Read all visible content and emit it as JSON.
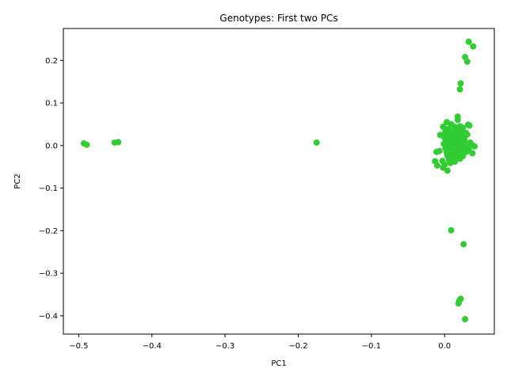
{
  "chart_data": {
    "type": "scatter",
    "title": "Genotypes: First two PCs",
    "xlabel": "PC1",
    "ylabel": "PC2",
    "xlim": [
      -0.521,
      0.068
    ],
    "ylim": [
      -0.443,
      0.275
    ],
    "xticks": [
      -0.5,
      -0.4,
      -0.3,
      -0.2,
      -0.1,
      0.0
    ],
    "xtick_labels": [
      "−0.5",
      "−0.4",
      "−0.3",
      "−0.2",
      "−0.1",
      "0.0"
    ],
    "yticks": [
      -0.4,
      -0.3,
      -0.2,
      -0.1,
      0.0,
      0.1,
      0.2
    ],
    "ytick_labels": [
      "−0.4",
      "−0.3",
      "−0.2",
      "−0.1",
      "0.0",
      "0.1",
      "0.2"
    ],
    "grid": false,
    "legend": "none",
    "marker_color": "#32cd32",
    "points": [
      [
        -0.493,
        0.005
      ],
      [
        -0.489,
        0.002
      ],
      [
        -0.451,
        0.007
      ],
      [
        -0.446,
        0.008
      ],
      [
        -0.175,
        0.007
      ],
      [
        0.033,
        0.244
      ],
      [
        0.039,
        0.233
      ],
      [
        0.028,
        0.208
      ],
      [
        0.031,
        0.197
      ],
      [
        0.022,
        0.146
      ],
      [
        0.021,
        0.132
      ],
      [
        0.009,
        -0.199
      ],
      [
        0.026,
        -0.232
      ],
      [
        0.022,
        -0.36
      ],
      [
        0.02,
        -0.365
      ],
      [
        0.019,
        -0.371
      ],
      [
        0.028,
        -0.408
      ],
      [
        0.018,
        0.068
      ],
      [
        0.018,
        0.06
      ],
      [
        0.003,
        0.055
      ],
      [
        0.032,
        0.049
      ],
      [
        0.034,
        0.047
      ],
      [
        0.009,
        0.05
      ],
      [
        -0.002,
        0.044
      ],
      [
        0.014,
        0.044
      ],
      [
        0.021,
        0.045
      ],
      [
        0.025,
        0.042
      ],
      [
        0.005,
        0.039
      ],
      [
        0.013,
        0.036
      ],
      [
        0.019,
        0.034
      ],
      [
        0.029,
        0.03
      ],
      [
        -0.006,
        0.025
      ],
      [
        0.002,
        0.026
      ],
      [
        0.01,
        0.028
      ],
      [
        0.016,
        0.024
      ],
      [
        0.024,
        0.027
      ],
      [
        0.031,
        0.026
      ],
      [
        0.0,
        0.018
      ],
      [
        0.007,
        0.019
      ],
      [
        0.012,
        0.015
      ],
      [
        0.02,
        0.018
      ],
      [
        0.027,
        0.015
      ],
      [
        0.003,
        0.01
      ],
      [
        0.009,
        0.011
      ],
      [
        0.015,
        0.008
      ],
      [
        0.022,
        0.01
      ],
      [
        0.028,
        0.006
      ],
      [
        0.035,
        0.007
      ],
      [
        0.041,
        -0.002
      ],
      [
        0.037,
        0.002
      ],
      [
        -0.001,
        0.004
      ],
      [
        0.006,
        0.002
      ],
      [
        0.011,
        0.0
      ],
      [
        0.017,
        0.003
      ],
      [
        0.024,
        -0.001
      ],
      [
        0.03,
        -0.003
      ],
      [
        0.001,
        -0.006
      ],
      [
        0.008,
        -0.005
      ],
      [
        0.014,
        -0.009
      ],
      [
        0.021,
        -0.007
      ],
      [
        0.027,
        -0.011
      ],
      [
        0.033,
        -0.008
      ],
      [
        0.038,
        -0.018
      ],
      [
        -0.011,
        -0.015
      ],
      [
        -0.007,
        -0.013
      ],
      [
        0.003,
        -0.016
      ],
      [
        0.01,
        -0.019
      ],
      [
        0.016,
        -0.017
      ],
      [
        0.023,
        -0.021
      ],
      [
        0.03,
        -0.015
      ],
      [
        0.004,
        -0.024
      ],
      [
        0.012,
        -0.027
      ],
      [
        0.019,
        -0.03
      ],
      [
        0.025,
        -0.025
      ],
      [
        -0.013,
        -0.037
      ],
      [
        -0.003,
        -0.036
      ],
      [
        0.006,
        -0.034
      ],
      [
        0.014,
        -0.038
      ],
      [
        0.021,
        -0.031
      ],
      [
        -0.01,
        -0.047
      ],
      [
        0.0,
        -0.045
      ],
      [
        0.008,
        -0.041
      ],
      [
        -0.002,
        -0.052
      ],
      [
        0.004,
        -0.059
      ],
      [
        0.011,
        -0.022
      ],
      [
        0.018,
        -0.012
      ],
      [
        0.013,
        0.005
      ],
      [
        0.017,
        -0.024
      ],
      [
        0.007,
        0.033
      ],
      [
        0.001,
        0.032
      ],
      [
        0.026,
        0.022
      ],
      [
        0.022,
        0.038
      ]
    ]
  }
}
